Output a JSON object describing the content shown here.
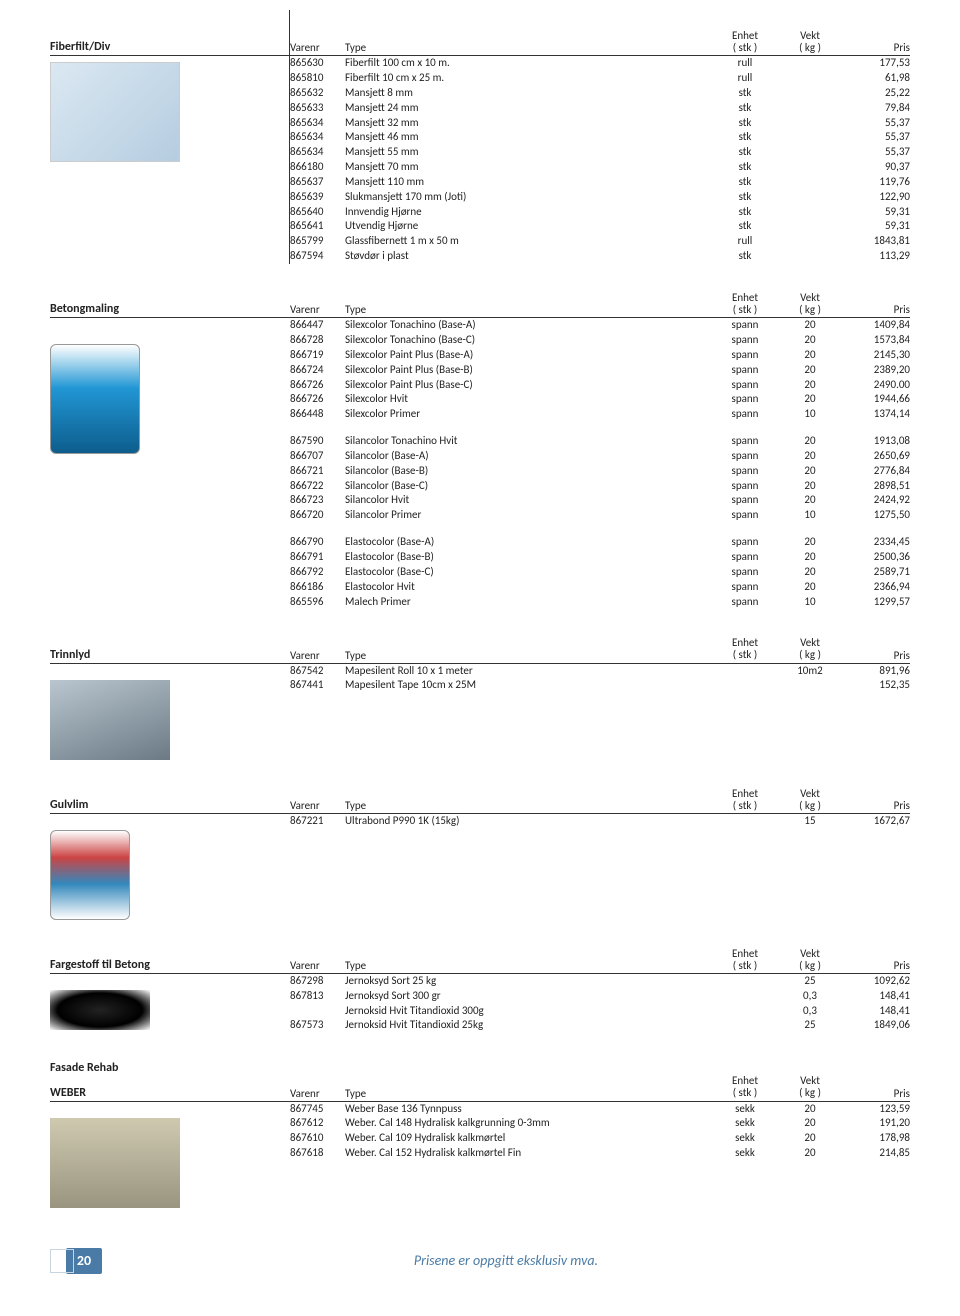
{
  "labels": {
    "varenr": "Varenr",
    "type": "Type",
    "enhet": "Enhet",
    "stk": "( stk )",
    "vekt": "Vekt",
    "kg": "( kg )",
    "pris": "Pris"
  },
  "sections": {
    "fiberfilt": {
      "title": "Fiberfilt/Div",
      "rows": [
        {
          "v": "865630",
          "t": "Fiberfilt 100 cm x 10 m.",
          "e": "rull",
          "k": "",
          "p": "177,53"
        },
        {
          "v": "865810",
          "t": "Fiberfilt 10 cm x 25 m.",
          "e": "rull",
          "k": "",
          "p": "61,98"
        },
        {
          "v": "865632",
          "t": "Mansjett 8 mm",
          "e": "stk",
          "k": "",
          "p": "25,22"
        },
        {
          "v": "865633",
          "t": "Mansjett 24 mm",
          "e": "stk",
          "k": "",
          "p": "79,84"
        },
        {
          "v": "865634",
          "t": "Mansjett 32 mm",
          "e": "stk",
          "k": "",
          "p": "55,37"
        },
        {
          "v": "865634",
          "t": "Mansjett 46 mm",
          "e": "stk",
          "k": "",
          "p": "55,37"
        },
        {
          "v": "865634",
          "t": "Mansjett 55 mm",
          "e": "stk",
          "k": "",
          "p": "55,37"
        },
        {
          "v": "866180",
          "t": "Mansjett 70 mm",
          "e": "stk",
          "k": "",
          "p": "90,37"
        },
        {
          "v": "865637",
          "t": "Mansjett 110 mm",
          "e": "stk",
          "k": "",
          "p": "119,76"
        },
        {
          "v": "865639",
          "t": "Slukmansjett 170 mm (Joti)",
          "e": "stk",
          "k": "",
          "p": "122,90"
        },
        {
          "v": "865640",
          "t": "Innvendig Hjørne",
          "e": "stk",
          "k": "",
          "p": "59,31"
        },
        {
          "v": "865641",
          "t": "Utvendig Hjørne",
          "e": "stk",
          "k": "",
          "p": "59,31"
        },
        {
          "v": "865799",
          "t": "Glassfibernett 1 m x 50 m",
          "e": "rull",
          "k": "",
          "p": "1843,81"
        },
        {
          "v": "867594",
          "t": "Støvdør i plast",
          "e": "stk",
          "k": "",
          "p": "113,29"
        }
      ]
    },
    "betongmaling": {
      "title": "Betongmaling",
      "groups": [
        [
          {
            "v": "866447",
            "t": "Silexcolor Tonachino (Base-A)",
            "e": "spann",
            "k": "20",
            "p": "1409,84"
          },
          {
            "v": "866728",
            "t": "Silexcolor Tonachino (Base-C)",
            "e": "spann",
            "k": "20",
            "p": "1573,84"
          },
          {
            "v": "866719",
            "t": "Silexcolor Paint Plus (Base-A)",
            "e": "spann",
            "k": "20",
            "p": "2145,30"
          },
          {
            "v": "866724",
            "t": "Silexcolor Paint Plus (Base-B)",
            "e": "spann",
            "k": "20",
            "p": "2389,20"
          },
          {
            "v": "866726",
            "t": "Silexcolor Paint Plus (Base-C)",
            "e": "spann",
            "k": "20",
            "p": "2490.00"
          },
          {
            "v": "866726",
            "t": "Silexcolor Hvit",
            "e": "spann",
            "k": "20",
            "p": "1944,66"
          },
          {
            "v": "866448",
            "t": "Silexcolor Primer",
            "e": "spann",
            "k": "10",
            "p": "1374,14"
          }
        ],
        [
          {
            "v": "867590",
            "t": "Silancolor Tonachino Hvit",
            "e": "spann",
            "k": "20",
            "p": "1913,08"
          },
          {
            "v": "866707",
            "t": "Silancolor (Base-A)",
            "e": "spann",
            "k": "20",
            "p": "2650,69"
          },
          {
            "v": "866721",
            "t": "Silancolor (Base-B)",
            "e": "spann",
            "k": "20",
            "p": "2776,84"
          },
          {
            "v": "866722",
            "t": "Silancolor (Base-C)",
            "e": "spann",
            "k": "20",
            "p": "2898,51"
          },
          {
            "v": "866723",
            "t": "Silancolor Hvit",
            "e": "spann",
            "k": "20",
            "p": "2424,92"
          },
          {
            "v": "866720",
            "t": "Silancolor Primer",
            "e": "spann",
            "k": "10",
            "p": "1275,50"
          }
        ],
        [
          {
            "v": "866790",
            "t": "Elastocolor (Base-A)",
            "e": "spann",
            "k": "20",
            "p": "2334,45"
          },
          {
            "v": "866791",
            "t": "Elastocolor (Base-B)",
            "e": "spann",
            "k": "20",
            "p": "2500,36"
          },
          {
            "v": "866792",
            "t": "Elastocolor (Base-C)",
            "e": "spann",
            "k": "20",
            "p": "2589,71"
          },
          {
            "v": "866186",
            "t": "Elastocolor Hvit",
            "e": "spann",
            "k": "20",
            "p": "2366,94"
          },
          {
            "v": "865596",
            "t": "Malech Primer",
            "e": "spann",
            "k": "10",
            "p": "1299,57"
          }
        ]
      ]
    },
    "trinnlyd": {
      "title": "Trinnlyd",
      "rows": [
        {
          "v": "867542",
          "t": "Mapesilent Roll 10 x 1 meter",
          "e": "",
          "k": "10m2",
          "p": "891,96"
        },
        {
          "v": "867441",
          "t": "Mapesilent Tape 10cm x 25M",
          "e": "",
          "k": "",
          "p": "152,35"
        }
      ]
    },
    "gulvlim": {
      "title": "Gulvlim",
      "rows": [
        {
          "v": "867221",
          "t": "Ultrabond P990 1K (15kg)",
          "e": "",
          "k": "15",
          "p": "1672,67"
        }
      ]
    },
    "fargestoff": {
      "title": "Fargestoff til Betong",
      "rows": [
        {
          "v": "867298",
          "t": "Jernoksyd Sort 25 kg",
          "e": "",
          "k": "25",
          "p": "1092,62"
        },
        {
          "v": "867813",
          "t": "Jernoksyd Sort 300 gr",
          "e": "",
          "k": "0,3",
          "p": "148,41"
        },
        {
          "v": "",
          "t": "Jernoksid Hvit Titandioxid 300g",
          "e": "",
          "k": "0,3",
          "p": "148,41"
        },
        {
          "v": "867573",
          "t": "Jernoksid Hvit Titandioxid 25kg",
          "e": "",
          "k": "25",
          "p": "1849,06"
        }
      ]
    },
    "fasade": {
      "title": "Fasade Rehab",
      "subtitle": "WEBER",
      "rows": [
        {
          "v": "867745",
          "t": "Weber Base 136 Tynnpuss",
          "e": "sekk",
          "k": "20",
          "p": "123,59"
        },
        {
          "v": "867612",
          "t": "Weber. Cal 148 Hydralisk kalkgrunning 0-3mm",
          "e": "sekk",
          "k": "20",
          "p": "191,20"
        },
        {
          "v": "867610",
          "t": "Weber. Cal 109 Hydralisk kalkmørtel",
          "e": "sekk",
          "k": "20",
          "p": "178,98"
        },
        {
          "v": "867618",
          "t": "Weber. Cal 152 Hydralisk kalkmørtel Fin",
          "e": "sekk",
          "k": "20",
          "p": "214,85"
        }
      ]
    }
  },
  "footer": {
    "page": "20",
    "text": "Prisene er oppgitt eksklusiv mva."
  }
}
